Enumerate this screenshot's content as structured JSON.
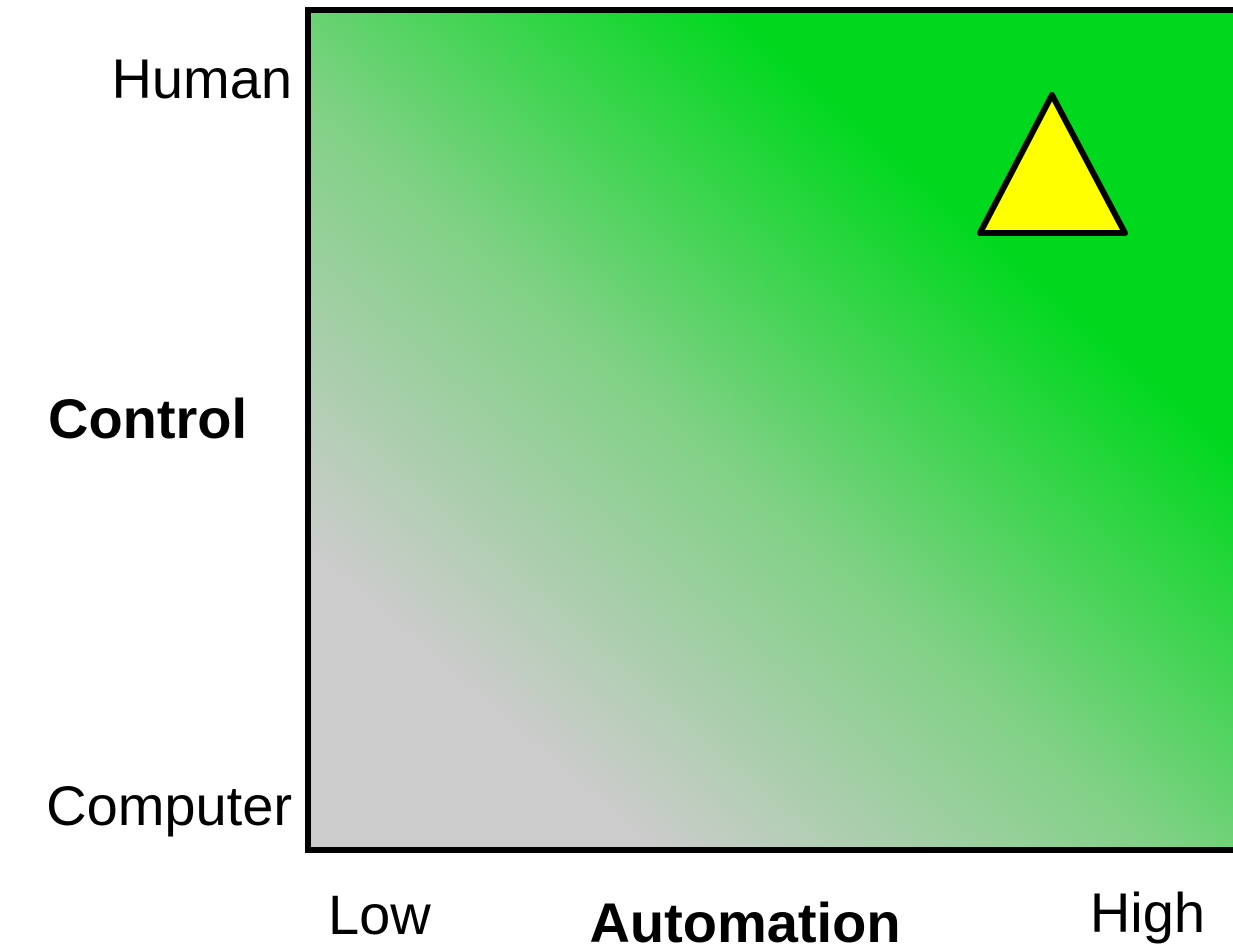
{
  "y_axis": {
    "title": "Control",
    "top_label": "Human",
    "bottom_label": "Computer"
  },
  "x_axis": {
    "title": "Automation",
    "low_label": "Low",
    "high_label": "High"
  }
}
